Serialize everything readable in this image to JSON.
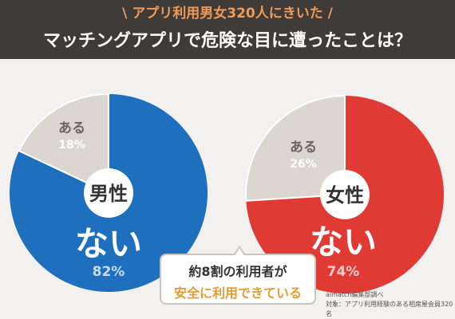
{
  "header": {
    "subtitle": "\\ アプリ利用男女320人にきいた /",
    "title": "マッチングアプリで危険な目に遭ったことは？"
  },
  "colors": {
    "male": "#1e6fbd",
    "female": "#e03a35",
    "grey": "#dcd6d0",
    "header_bg": "#3e3b39",
    "accent_orange": "#f19a58"
  },
  "chart_data": [
    {
      "type": "pie",
      "title": "男性",
      "labels": [
        "ない",
        "ある"
      ],
      "values": [
        82,
        18
      ],
      "value_labels": [
        "82%",
        "18%"
      ]
    },
    {
      "type": "pie",
      "title": "女性",
      "labels": [
        "ない",
        "ある"
      ],
      "values": [
        74,
        26
      ],
      "value_labels": [
        "74%",
        "26%"
      ]
    }
  ],
  "callout": {
    "line1": "約8割の利用者が",
    "line2": "安全に利用できている"
  },
  "source": {
    "line1": "aimatch編集部調べ",
    "line2": "対象：アプリ利用経験のある相席屋会員320名"
  }
}
